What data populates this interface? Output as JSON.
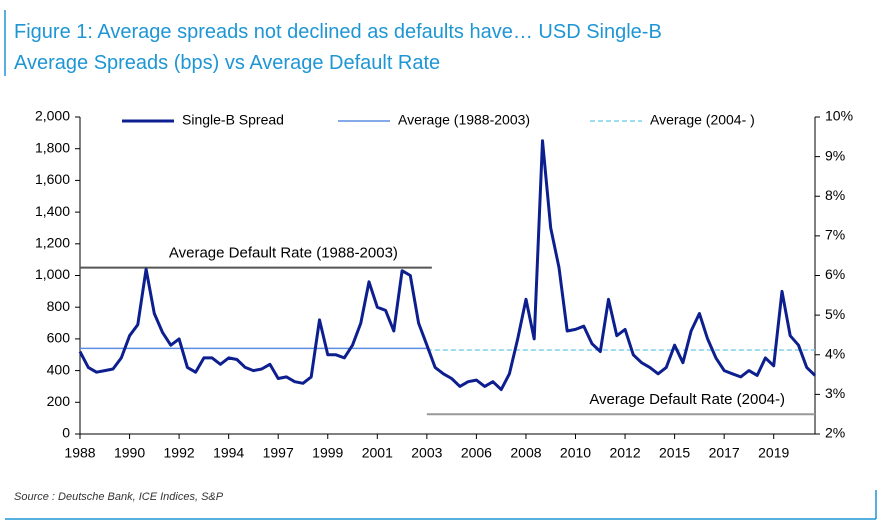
{
  "chart_data": {
    "type": "line",
    "title_lines": [
      "Figure 1: Average spreads not declined as defaults have… USD Single-B",
      "Average Spreads (bps) vs Average Default Rate"
    ],
    "source": "Source : Deutsche Bank, ICE Indices, S&P",
    "categories": [
      "1988",
      null,
      null,
      null,
      null,
      null,
      "1990",
      null,
      null,
      null,
      null,
      null,
      "1992",
      null,
      null,
      null,
      null,
      null,
      "1994",
      null,
      null,
      null,
      null,
      null,
      "1997",
      null,
      null,
      null,
      null,
      null,
      "1999",
      null,
      null,
      null,
      null,
      null,
      "2001",
      null,
      null,
      null,
      null,
      null,
      "2003",
      null,
      null,
      null,
      null,
      null,
      "2006",
      null,
      null,
      null,
      null,
      null,
      "2008",
      null,
      null,
      null,
      null,
      null,
      "2010",
      null,
      null,
      null,
      null,
      null,
      "2012",
      null,
      null,
      null,
      null,
      null,
      "2015",
      null,
      null,
      null,
      null,
      null,
      "2017",
      null,
      null,
      null,
      null,
      null,
      "2019",
      null,
      null,
      null,
      null,
      null
    ],
    "series": [
      {
        "name": "Single-B Spread",
        "color": "#0d1f8f",
        "values": [
          520,
          420,
          390,
          400,
          410,
          480,
          620,
          690,
          1040,
          760,
          640,
          560,
          600,
          420,
          390,
          480,
          480,
          440,
          480,
          470,
          420,
          400,
          410,
          440,
          350,
          360,
          330,
          320,
          360,
          720,
          500,
          500,
          480,
          560,
          700,
          960,
          800,
          780,
          650,
          1030,
          1000,
          700,
          560,
          420,
          380,
          350,
          300,
          330,
          340,
          300,
          330,
          280,
          380,
          600,
          850,
          600,
          1850,
          1300,
          1050,
          650,
          660,
          680,
          570,
          520,
          850,
          620,
          660,
          500,
          450,
          420,
          380,
          420,
          560,
          450,
          650,
          760,
          600,
          480,
          400,
          380,
          360,
          400,
          370,
          480,
          430,
          900,
          620,
          560,
          420,
          370
        ]
      }
    ],
    "averages": [
      {
        "name": "Average (1988-2003)",
        "color": "#5b8ee0",
        "dashed": false,
        "value": 540,
        "start": "1988",
        "end": "2003"
      },
      {
        "name": "Average (2004- )",
        "color": "#7ed0ea",
        "dashed": true,
        "value": 530,
        "start": "2003",
        "end": null
      }
    ],
    "default_rates": [
      {
        "text": "Average Default Rate (1988-2003)",
        "value": 6.2,
        "axis": "y2",
        "color": "#555555",
        "start": "1988",
        "end": "2003"
      },
      {
        "text": "Average Default Rate (2004-)",
        "value": 2.5,
        "axis": "y2",
        "color": "#999999",
        "start": "2003",
        "end": null
      }
    ],
    "ylim": [
      0,
      2000
    ],
    "yticks": [
      0,
      200,
      400,
      600,
      800,
      {
        "value": 1000,
        "label": "1,000"
      },
      {
        "value": 1200,
        "label": "1,200"
      },
      {
        "value": 1400,
        "label": "1,400"
      },
      {
        "value": 1600,
        "label": "1,600"
      },
      {
        "value": 1800,
        "label": "1,800"
      },
      {
        "value": 2000,
        "label": "2,000"
      }
    ],
    "y2lim": [
      2,
      10
    ],
    "y2ticks": [
      {
        "value": 2,
        "label": "2%"
      },
      {
        "value": 3,
        "label": "3%"
      },
      {
        "value": 4,
        "label": "4%"
      },
      {
        "value": 5,
        "label": "5%"
      },
      {
        "value": 6,
        "label": "6%"
      },
      {
        "value": 7,
        "label": "7%"
      },
      {
        "value": 8,
        "label": "8%"
      },
      {
        "value": 9,
        "label": "9%"
      },
      {
        "value": 10,
        "label": "10%"
      }
    ],
    "grid": false,
    "legend": "top"
  }
}
